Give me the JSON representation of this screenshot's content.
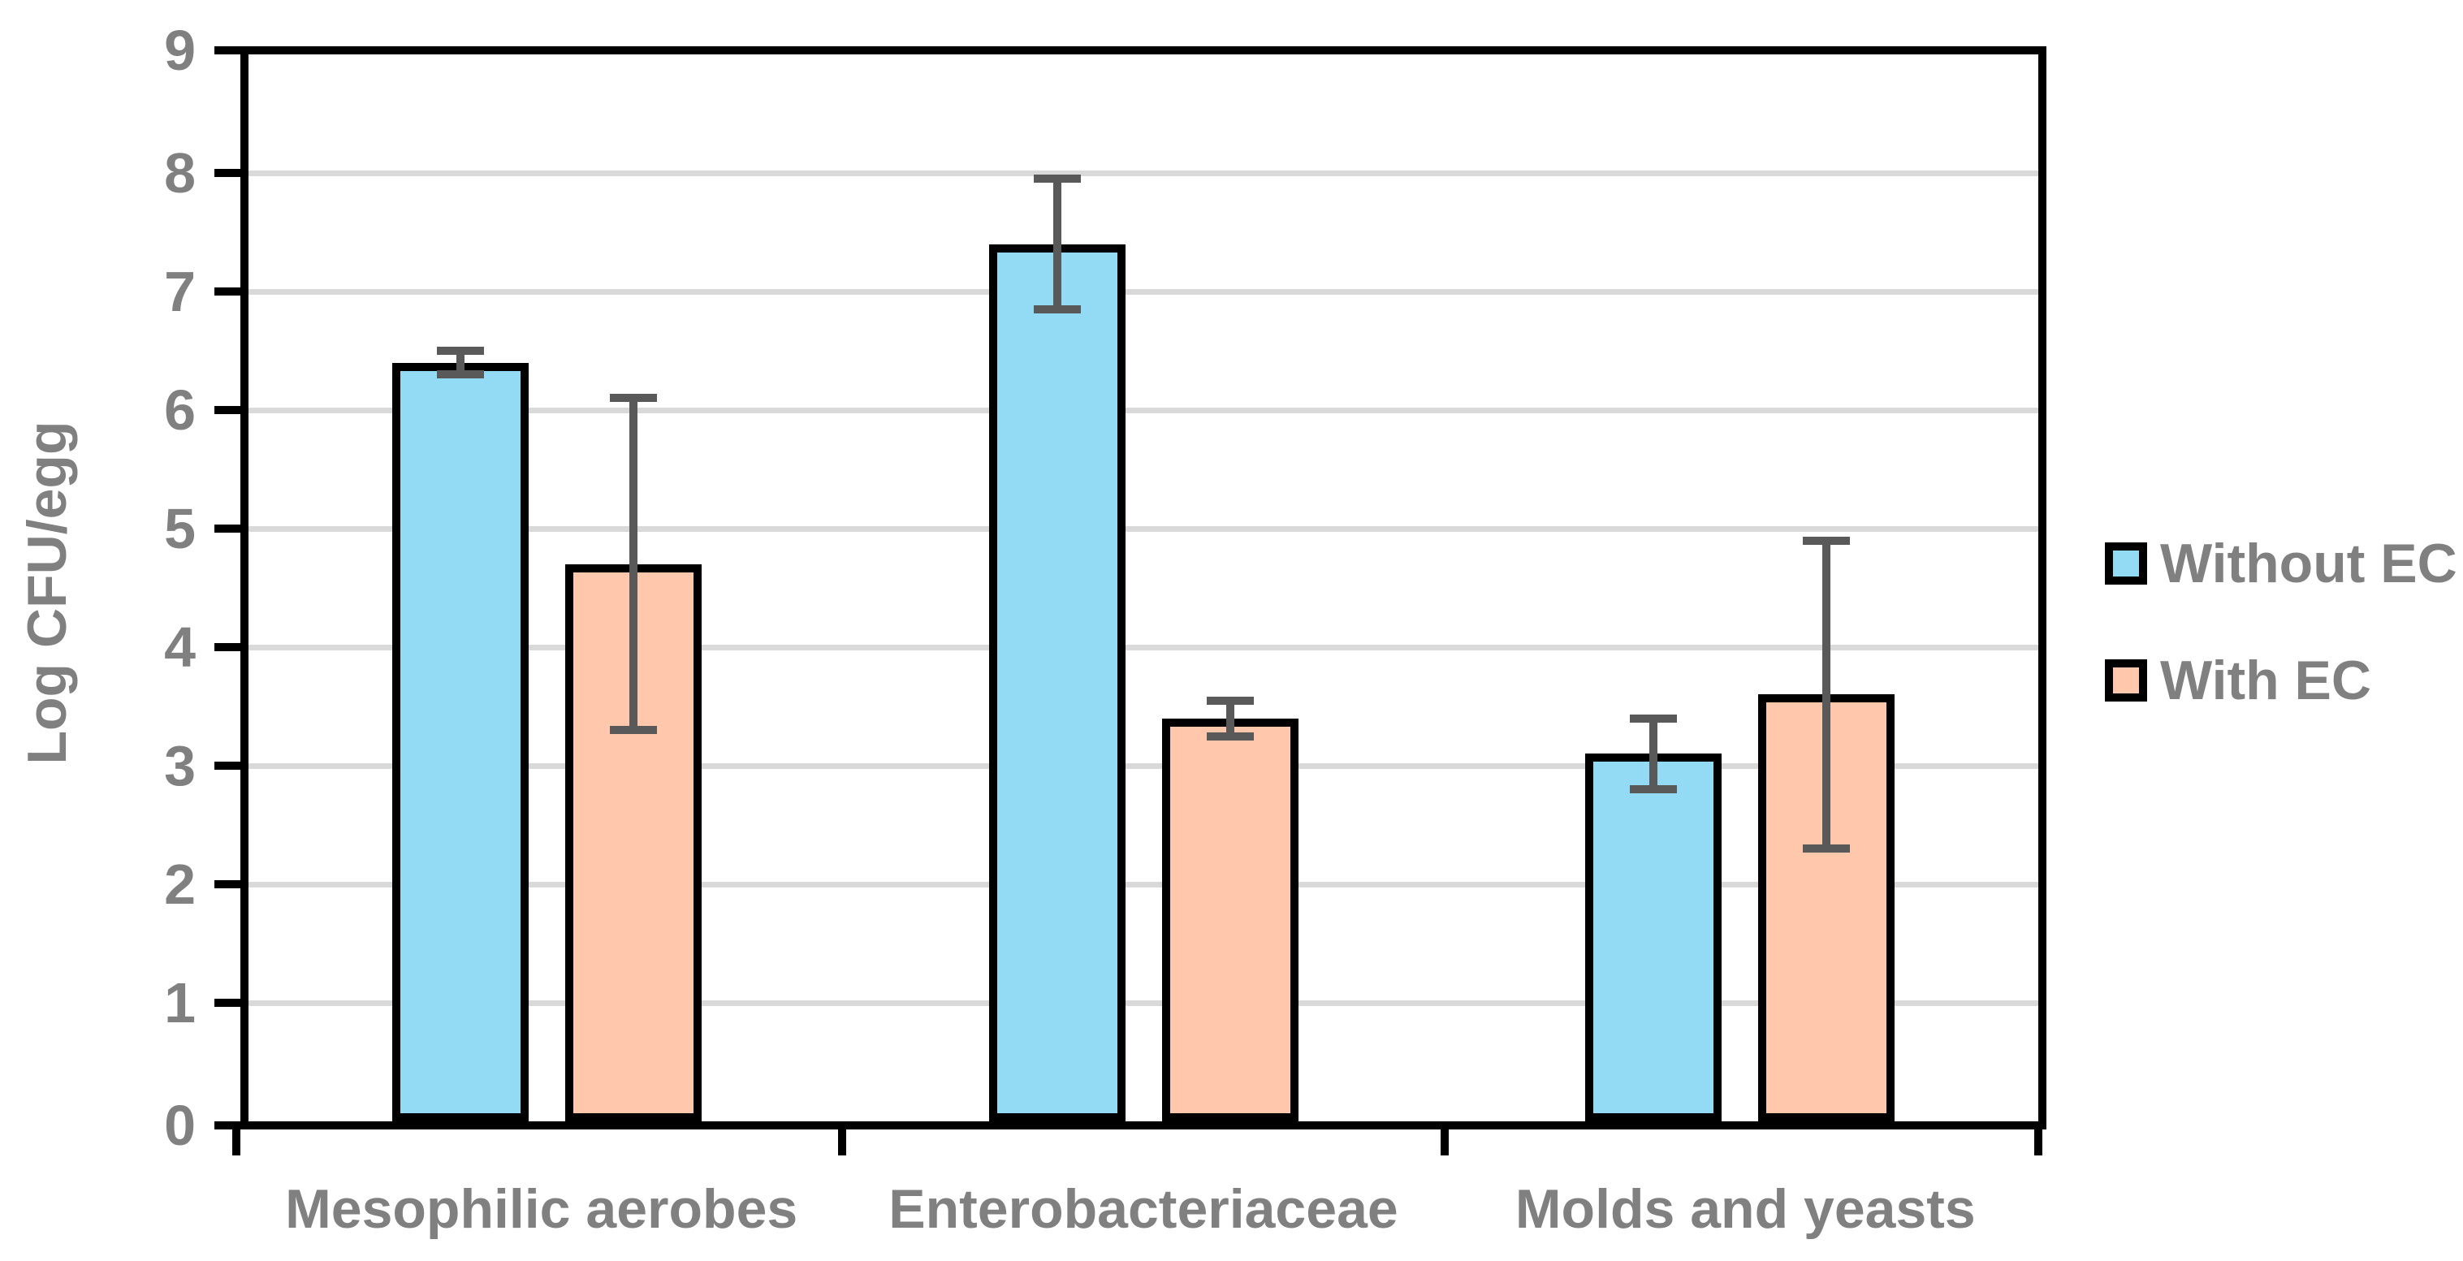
{
  "chart_data": {
    "type": "bar",
    "title": "",
    "xlabel": "",
    "ylabel": "Log CFU/egg",
    "ylim": [
      0,
      9
    ],
    "y_ticks": [
      0,
      1,
      2,
      3,
      4,
      5,
      6,
      7,
      8,
      9
    ],
    "grid": "horizontal",
    "legend_position": "right",
    "categories": [
      "Mesophilic aerobes",
      "Enterobacteriaceae",
      "Molds and yeasts"
    ],
    "series": [
      {
        "name": "Without EC",
        "color": "#93DBF5",
        "values": [
          6.4,
          7.4,
          3.1
        ],
        "error_low": [
          6.3,
          6.85,
          2.8
        ],
        "error_high": [
          6.5,
          7.95,
          3.4
        ]
      },
      {
        "name": "With EC",
        "color": "#FFC7AC",
        "values": [
          4.7,
          3.4,
          3.6
        ],
        "error_low": [
          3.3,
          3.25,
          2.3
        ],
        "error_high": [
          6.1,
          3.55,
          4.9
        ]
      }
    ],
    "colors": {
      "bar_border": "#000000",
      "error_bar": "#595959",
      "gridline": "#D9D9D9",
      "text": "#808080",
      "axis": "#000000",
      "background": "#FFFFFF"
    }
  }
}
